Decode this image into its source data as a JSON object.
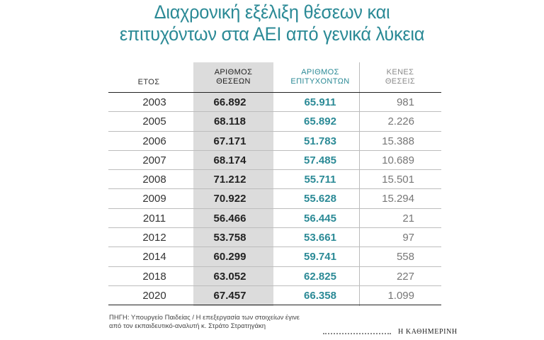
{
  "chart_data": {
    "type": "table",
    "title": [
      "Διαχρονική εξέλιξη θέσεων και",
      "επιτυχόντων στα ΑΕΙ από γενικά λύκεια"
    ],
    "columns": {
      "year": [
        "ΕΤΟΣ"
      ],
      "seats": [
        "ΑΡΙΘΜΟΣ",
        "ΘΕΣΕΩΝ"
      ],
      "successful": [
        "ΑΡΙΘΜΟΣ",
        "ΕΠΙΤΥΧΟΝΤΩΝ"
      ],
      "empty": [
        "ΚΕΝΕΣ",
        "ΘΕΣΕΙΣ"
      ]
    },
    "rows": [
      {
        "year": "2003",
        "seats": "66.892",
        "successful": "65.911",
        "empty": "981"
      },
      {
        "year": "2005",
        "seats": "68.118",
        "successful": "65.892",
        "empty": "2.226"
      },
      {
        "year": "2006",
        "seats": "67.171",
        "successful": "51.783",
        "empty": "15.388"
      },
      {
        "year": "2007",
        "seats": "68.174",
        "successful": "57.485",
        "empty": "10.689"
      },
      {
        "year": "2008",
        "seats": "71.212",
        "successful": "55.711",
        "empty": "15.501"
      },
      {
        "year": "2009",
        "seats": "70.922",
        "successful": "55.628",
        "empty": "15.294"
      },
      {
        "year": "2011",
        "seats": "56.466",
        "successful": "56.445",
        "empty": "21"
      },
      {
        "year": "2012",
        "seats": "53.758",
        "successful": "53.661",
        "empty": "97"
      },
      {
        "year": "2014",
        "seats": "60.299",
        "successful": "59.741",
        "empty": "558"
      },
      {
        "year": "2018",
        "seats": "63.052",
        "successful": "62.825",
        "empty": "227"
      },
      {
        "year": "2020",
        "seats": "67.457",
        "successful": "66.358",
        "empty": "1.099"
      }
    ]
  },
  "source": [
    "ΠΗΓΗ: Υπουργείο Παιδείας / Η επεξεργασία των στοιχείων έγινε",
    "από τον εκπαιδευτικό-αναλυτή κ. Στράτο Στρατηγάκη"
  ],
  "brand": "Η ΚΑΘΗΜΕΡΙΝΗ",
  "colors": {
    "accent": "#2b8a96",
    "shade": "#dcdcdc",
    "muted": "#8a8a8a"
  }
}
